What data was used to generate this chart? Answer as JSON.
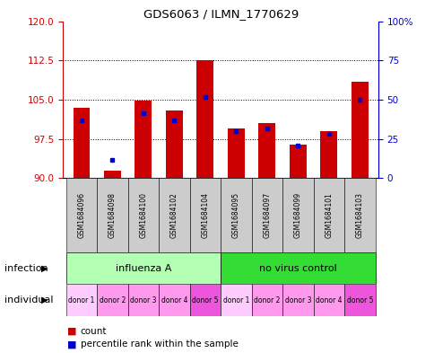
{
  "title": "GDS6063 / ILMN_1770629",
  "samples": [
    "GSM1684096",
    "GSM1684098",
    "GSM1684100",
    "GSM1684102",
    "GSM1684104",
    "GSM1684095",
    "GSM1684097",
    "GSM1684099",
    "GSM1684101",
    "GSM1684103"
  ],
  "red_values": [
    103.5,
    91.5,
    104.8,
    103.0,
    112.5,
    99.5,
    100.5,
    96.5,
    99.0,
    108.5
  ],
  "blue_values": [
    101.0,
    93.5,
    102.5,
    101.0,
    105.5,
    99.0,
    99.5,
    96.2,
    98.5,
    105.0
  ],
  "ylim_left": [
    90,
    120
  ],
  "yticks_left": [
    90,
    97.5,
    105,
    112.5,
    120
  ],
  "yticks_right": [
    0,
    25,
    50,
    75,
    100
  ],
  "ybaseline": 90,
  "infection_groups": [
    {
      "label": "influenza A",
      "start": 0,
      "end": 5,
      "color": "#b3ffb3"
    },
    {
      "label": "no virus control",
      "start": 5,
      "end": 10,
      "color": "#33dd33"
    }
  ],
  "donors": [
    "donor 1",
    "donor 2",
    "donor 3",
    "donor 4",
    "donor 5",
    "donor 1",
    "donor 2",
    "donor 3",
    "donor 4",
    "donor 5"
  ],
  "donor_colors": [
    "#ffccff",
    "#ff99ee",
    "#ff99ee",
    "#ff99ee",
    "#ee55dd",
    "#ffccff",
    "#ff99ee",
    "#ff99ee",
    "#ff99ee",
    "#ee55dd"
  ],
  "bar_color": "#cc0000",
  "blue_color": "#0000cc",
  "bg_color": "#ffffff",
  "plot_bg": "#ffffff",
  "sample_box_color": "#cccccc",
  "left_label_color": "#cc0000",
  "right_label_color": "#0000cc"
}
